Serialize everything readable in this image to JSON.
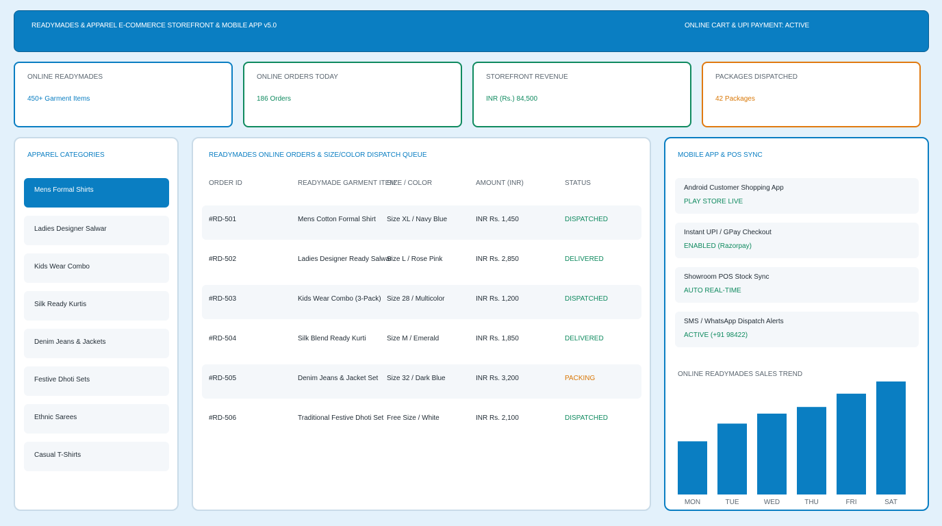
{
  "header": {
    "title": "READYMADES & APPAREL E-COMMERCE STOREFRONT & MOBILE APP v5.0",
    "status": "ONLINE CART & UPI PAYMENT: ACTIVE"
  },
  "kpis": [
    {
      "label": "ONLINE READYMADES",
      "value": "450+ Garment Items",
      "color": "#0a7ec2"
    },
    {
      "label": "ONLINE ORDERS TODAY",
      "value": "186 Orders",
      "color": "#0f8a5f"
    },
    {
      "label": "STOREFRONT REVENUE",
      "value": "INR (Rs.) 84,500",
      "color": "#0f8a5f"
    },
    {
      "label": "PACKAGES DISPATCHED",
      "value": "42 Packages",
      "color": "#e07a10"
    }
  ],
  "categories": {
    "title": "APPAREL CATEGORIES",
    "items": [
      {
        "label": "Mens Formal Shirts",
        "active": true
      },
      {
        "label": "Ladies Designer Salwar",
        "active": false
      },
      {
        "label": "Kids Wear Combo",
        "active": false
      },
      {
        "label": "Silk Ready Kurtis",
        "active": false
      },
      {
        "label": "Denim Jeans & Jackets",
        "active": false
      },
      {
        "label": "Festive Dhoti Sets",
        "active": false
      },
      {
        "label": "Ethnic Sarees",
        "active": false
      },
      {
        "label": "Casual T-Shirts",
        "active": false
      }
    ]
  },
  "orders": {
    "title": "READYMADES ONLINE ORDERS & SIZE/COLOR DISPATCH QUEUE",
    "columns": [
      "ORDER ID",
      "READYMADE GARMENT ITEM",
      "SIZE / COLOR",
      "AMOUNT (INR)",
      "STATUS"
    ],
    "rows": [
      {
        "id": "#RD-501",
        "item": "Mens Cotton Formal Shirt",
        "size": "Size XL / Navy Blue",
        "amount": "INR Rs. 1,450",
        "status": "DISPATCHED",
        "status_color": "green"
      },
      {
        "id": "#RD-502",
        "item": "Ladies Designer Ready Salwar",
        "size": "Size L / Rose Pink",
        "amount": "INR Rs. 2,850",
        "status": "DELIVERED",
        "status_color": "green"
      },
      {
        "id": "#RD-503",
        "item": "Kids Wear Combo (3-Pack)",
        "size": "Size 28 / Multicolor",
        "amount": "INR Rs. 1,200",
        "status": "DISPATCHED",
        "status_color": "green"
      },
      {
        "id": "#RD-504",
        "item": "Silk Blend Ready Kurti",
        "size": "Size M / Emerald",
        "amount": "INR Rs. 1,850",
        "status": "DELIVERED",
        "status_color": "green"
      },
      {
        "id": "#RD-505",
        "item": "Denim Jeans & Jacket Set",
        "size": "Size 32 / Dark Blue",
        "amount": "INR Rs. 3,200",
        "status": "PACKING",
        "status_color": "orange"
      },
      {
        "id": "#RD-506",
        "item": "Traditional Festive Dhoti Set",
        "size": "Free Size / White",
        "amount": "INR Rs. 2,100",
        "status": "DISPATCHED",
        "status_color": "green"
      }
    ]
  },
  "sync": {
    "title": "MOBILE APP & POS SYNC",
    "items": [
      {
        "title": "Android Customer Shopping App",
        "status": "PLAY STORE LIVE"
      },
      {
        "title": "Instant UPI / GPay Checkout",
        "status": "ENABLED (Razorpay)"
      },
      {
        "title": "Showroom POS Stock Sync",
        "status": "AUTO REAL-TIME"
      },
      {
        "title": "SMS / WhatsApp Dispatch Alerts",
        "status": "ACTIVE (+91 98422)"
      }
    ]
  },
  "chart_data": {
    "type": "bar",
    "title": "ONLINE READYMADES SALES TREND",
    "categories": [
      "MON",
      "TUE",
      "WED",
      "THU",
      "FRI",
      "SAT"
    ],
    "values": [
      48,
      64,
      73,
      79,
      91,
      102
    ],
    "bar_color": "#0a7ec2"
  }
}
